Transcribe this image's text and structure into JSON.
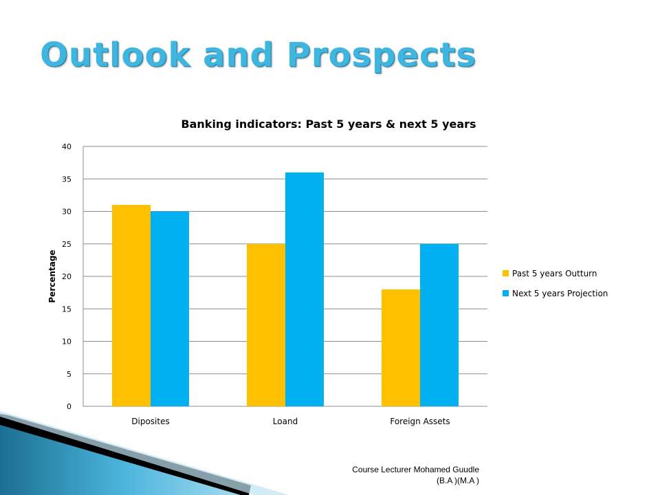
{
  "slide": {
    "title": "Outlook and Prospects",
    "footer_line1": "Course Lecturer Mohamed Guudle",
    "footer_line2": "(B.A )(M.A )"
  },
  "chart_data": {
    "type": "bar",
    "title": "Banking indicators: Past 5 years & next 5 years",
    "xlabel": "",
    "ylabel": "Percentage",
    "categories": [
      "Diposites",
      "Loand",
      "Foreign Assets"
    ],
    "series": [
      {
        "name": "Past 5 years Outturn",
        "values": [
          31,
          25,
          18
        ],
        "color": "#ffc000"
      },
      {
        "name": "Next 5 years Projection",
        "values": [
          30,
          36,
          25
        ],
        "color": "#00b0f0"
      }
    ],
    "ylim": [
      0,
      40
    ],
    "yticks": [
      0,
      5,
      10,
      15,
      20,
      25,
      30,
      35,
      40
    ],
    "grid": true,
    "legend_position": "right"
  }
}
